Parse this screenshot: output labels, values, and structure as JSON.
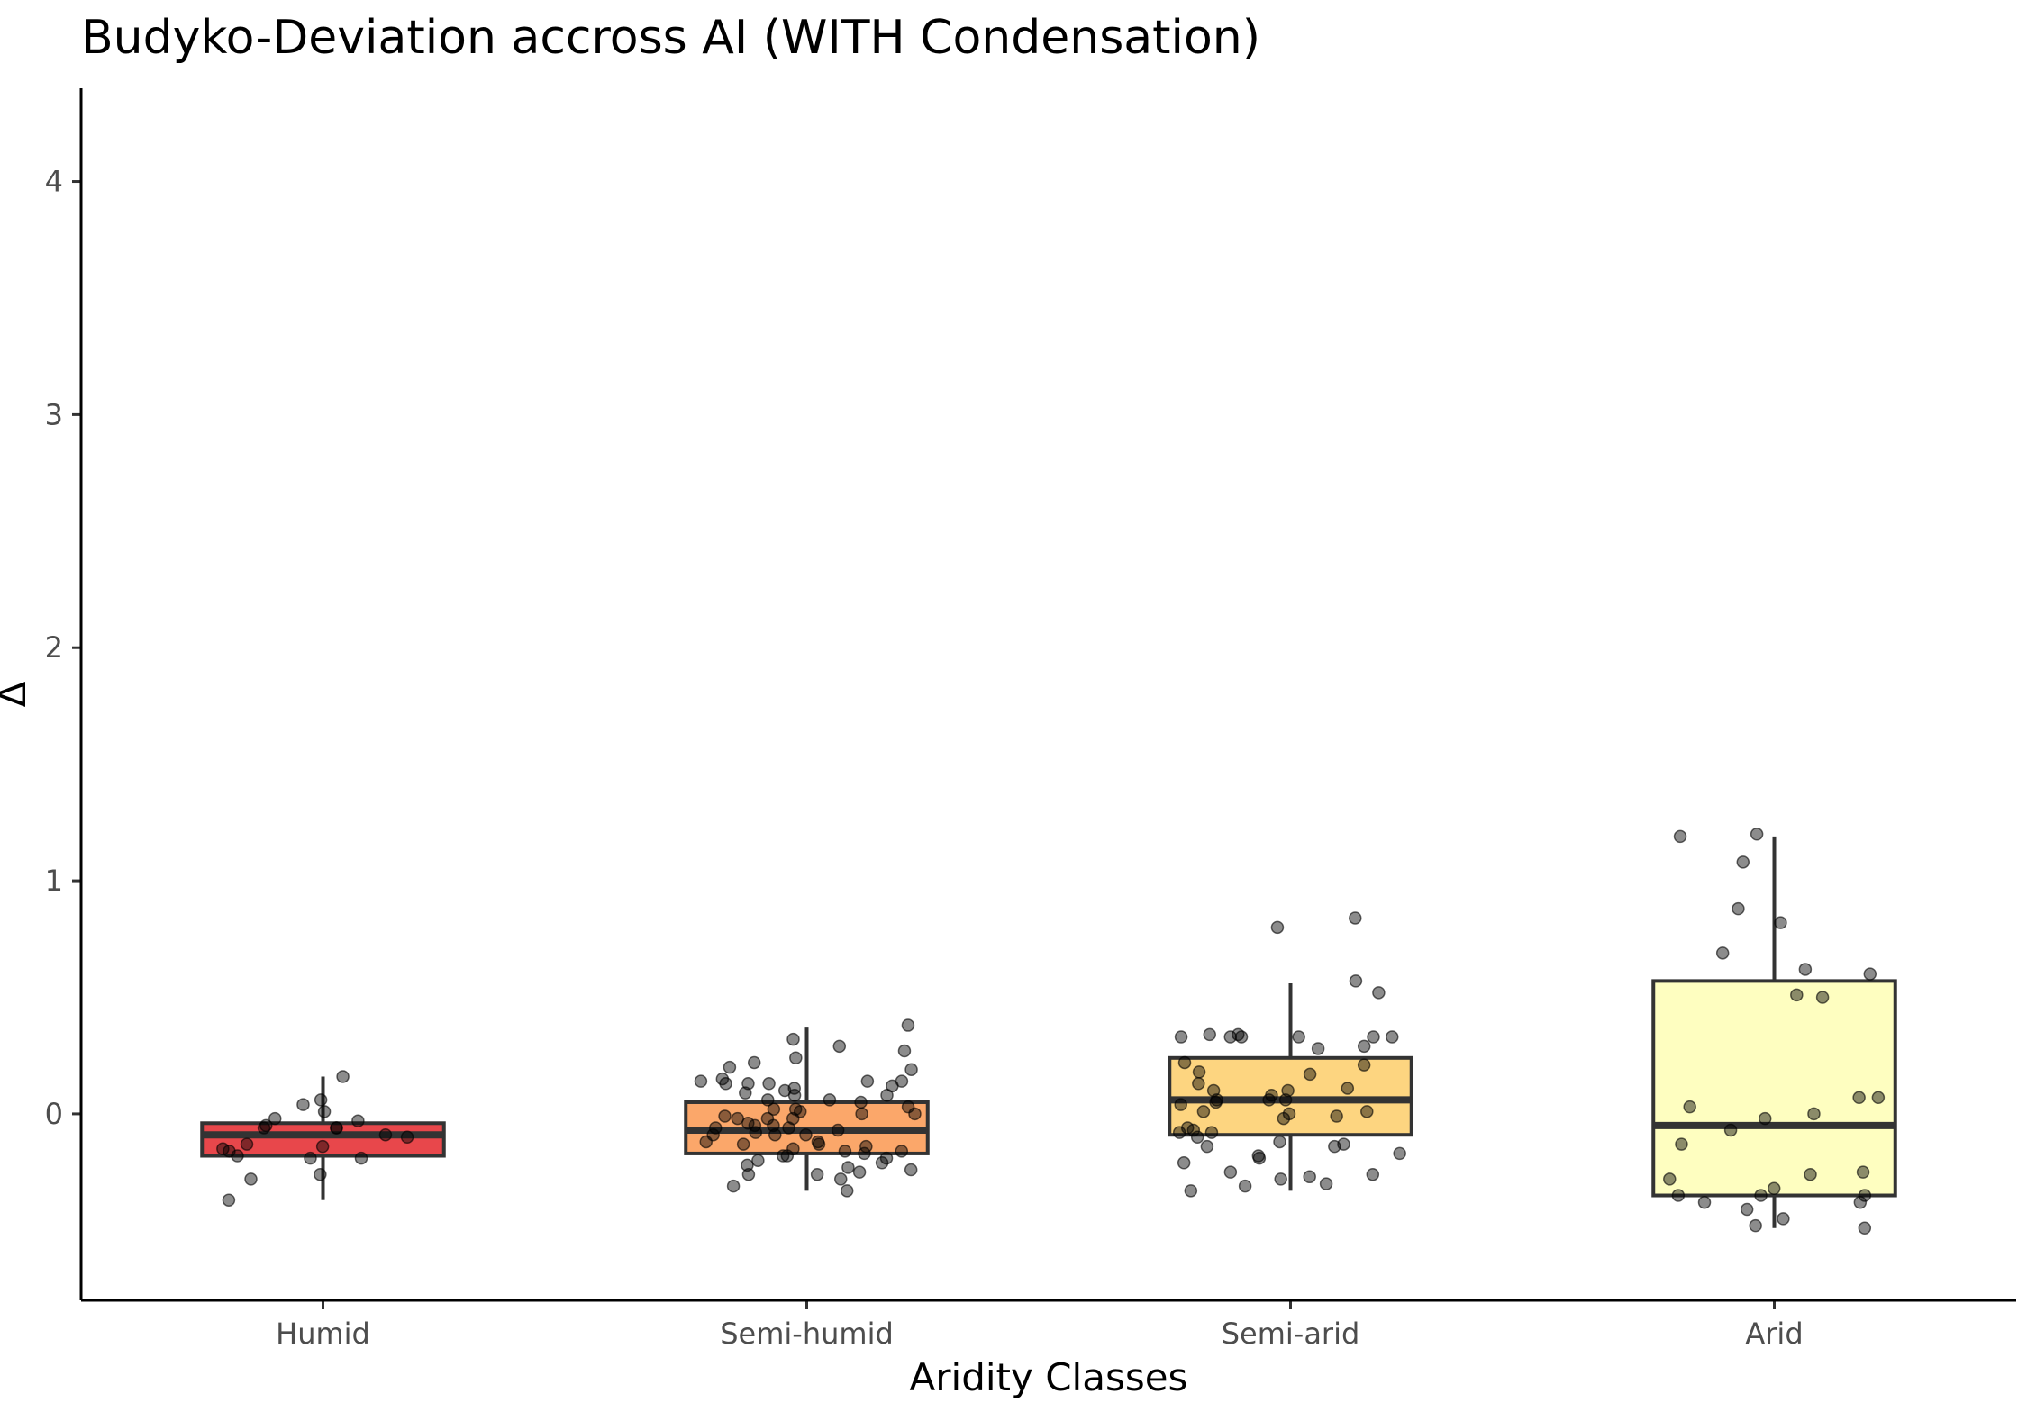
{
  "chart_data": {
    "type": "box",
    "title": "Budyko-Deviation accross AI (WITH Condensation)",
    "xlabel": "Aridity Classes",
    "ylabel": "Δ",
    "ylim": [
      -0.8,
      4.4
    ],
    "yticks": [
      0,
      1,
      2,
      3,
      4
    ],
    "grid": false,
    "legend": "none",
    "categories": [
      "Humid",
      "Semi-humid",
      "Semi-arid",
      "Arid"
    ],
    "boxes": [
      {
        "category": "Humid",
        "whisker_low": -0.37,
        "q1": -0.18,
        "median": -0.09,
        "q3": -0.04,
        "whisker_high": 0.16,
        "color": "#e8474b"
      },
      {
        "category": "Semi-humid",
        "whisker_low": -0.33,
        "q1": -0.17,
        "median": -0.07,
        "q3": 0.05,
        "whisker_high": 0.37,
        "color": "#fba76a"
      },
      {
        "category": "Semi-arid",
        "whisker_low": -0.33,
        "q1": -0.09,
        "median": 0.06,
        "q3": 0.24,
        "whisker_high": 0.56,
        "color": "#fdd580"
      },
      {
        "category": "Arid",
        "whisker_low": -0.49,
        "q1": -0.35,
        "median": -0.05,
        "q3": 0.57,
        "whisker_high": 1.19,
        "color": "#fefec0"
      }
    ],
    "points": [
      {
        "category": "Humid",
        "values": [
          0.06,
          -0.06,
          -0.18,
          -0.05,
          -0.19,
          0.01,
          -0.16,
          -0.1,
          0.16,
          0.04,
          -0.02,
          -0.09,
          -0.03,
          -0.37,
          -0.14,
          -0.06,
          -0.19,
          -0.13,
          -0.06,
          -0.26,
          -0.28,
          -0.15
        ]
      },
      {
        "category": "Semi-humid",
        "values": [
          0.27,
          0.19,
          0.15,
          0.11,
          0.03,
          -0.02,
          -0.06,
          -0.12,
          -0.16,
          -0.2,
          -0.31,
          0.0,
          0.08,
          -0.22,
          -0.26,
          0.13,
          0.2,
          0.14,
          0.02,
          -0.05,
          -0.09,
          -0.16,
          -0.26,
          0.12,
          0.01,
          -0.04,
          0.06,
          0.1,
          -0.17,
          -0.28,
          0.13,
          0.09,
          0.02,
          -0.06,
          -0.12,
          -0.18,
          -0.33,
          0.29,
          0.38,
          0.06,
          -0.02,
          -0.09,
          -0.15,
          -0.21,
          0.24,
          0.32,
          0.22,
          0.13,
          0.05,
          -0.01,
          -0.08,
          -0.14,
          -0.19,
          -0.24,
          0.14,
          0.08,
          0.0,
          -0.07,
          -0.13,
          0.14,
          -0.02,
          -0.09,
          -0.13,
          -0.18,
          -0.23,
          -0.25,
          -0.05
        ]
      },
      {
        "category": "Semi-arid",
        "values": [
          0.33,
          0.04,
          -0.19,
          -0.27,
          0.8,
          0.18,
          -0.17,
          -0.28,
          0.33,
          0.17,
          -0.02,
          -0.14,
          0.57,
          0.52,
          0.34,
          0.22,
          0.1,
          -0.01,
          -0.14,
          -0.3,
          -0.26,
          0.33,
          0.21,
          0.06,
          -0.06,
          -0.1,
          -0.21,
          0.33,
          0.29,
          0.01,
          -0.08,
          0.0,
          -0.33,
          0.33,
          0.1,
          -0.07,
          -0.18,
          -0.25,
          -0.31,
          0.84,
          0.34,
          0.05,
          -0.08,
          0.28,
          0.13,
          0.06,
          0.01,
          0.06,
          0.08,
          0.33,
          0.11,
          -0.12,
          -0.13
        ]
      },
      {
        "category": "Arid",
        "values": [
          0.88,
          0.6,
          0.5,
          0.62,
          0.69,
          1.08,
          1.19,
          0.07,
          -0.13,
          -0.35,
          -0.38,
          -0.07,
          -0.28,
          0.51,
          -0.35,
          -0.41,
          -0.45,
          -0.49,
          0.82,
          1.2,
          0.03,
          -0.25,
          -0.26,
          -0.32,
          -0.35,
          0.0,
          -0.02,
          0.07,
          -0.38,
          -0.48
        ]
      }
    ]
  }
}
